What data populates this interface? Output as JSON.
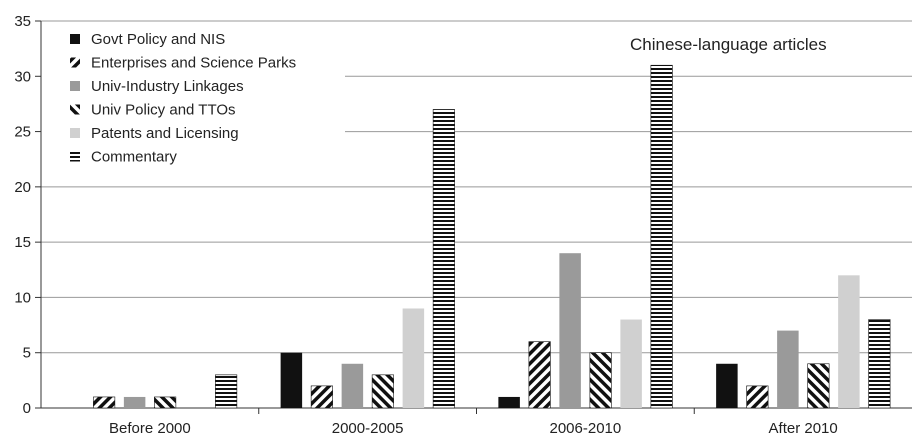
{
  "chart_data": {
    "type": "bar",
    "title": "",
    "xlabel": "",
    "ylabel": "",
    "ylim": [
      0,
      35
    ],
    "yticks": [
      0,
      5,
      10,
      15,
      20,
      25,
      30,
      35
    ],
    "grid": "horizontal",
    "legend_position": "top-left",
    "annotation": "Chinese-language articles",
    "categories": [
      "Before 2000",
      "2000-2005",
      "2006-2010",
      "After 2010"
    ],
    "series": [
      {
        "name": "Govt Policy and NIS",
        "pattern": "solid-black",
        "color": "#111111",
        "values": [
          0,
          5,
          1,
          4
        ]
      },
      {
        "name": "Enterprises and Science Parks",
        "pattern": "diagonal-forward",
        "color": "#111111",
        "values": [
          1,
          2,
          6,
          2
        ]
      },
      {
        "name": "Univ-Industry Linkages",
        "pattern": "solid-gray",
        "color": "#9a9a9a",
        "values": [
          1,
          4,
          14,
          7
        ]
      },
      {
        "name": "Univ Policy and TTOs",
        "pattern": "diagonal-backward",
        "color": "#111111",
        "values": [
          1,
          3,
          5,
          4
        ]
      },
      {
        "name": "Patents and Licensing",
        "pattern": "solid-lightgray",
        "color": "#d0d0d0",
        "values": [
          0,
          9,
          8,
          12
        ]
      },
      {
        "name": "Commentary",
        "pattern": "horizontal-lines",
        "color": "#111111",
        "values": [
          3,
          27,
          31,
          8
        ]
      }
    ]
  }
}
